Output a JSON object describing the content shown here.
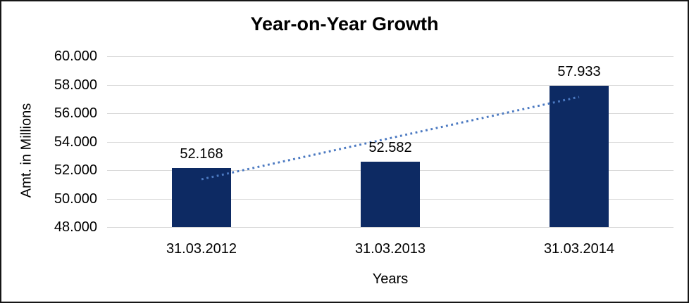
{
  "chart_data": {
    "type": "bar",
    "title": "Year-on-Year Growth",
    "xlabel": "Years",
    "ylabel": "Amt. in Millions",
    "categories": [
      "31.03.2012",
      "31.03.2013",
      "31.03.2014"
    ],
    "values": [
      52168,
      52582,
      57933
    ],
    "value_labels": [
      "52.168",
      "52.582",
      "57.933"
    ],
    "ylim": [
      48000,
      60000
    ],
    "ytick_step": 2000,
    "ytick_labels": [
      "60.000",
      "58.000",
      "56.000",
      "54.000",
      "52.000",
      "50.000",
      "48.000"
    ],
    "grid": true,
    "legend": "none",
    "bar_color": "#0D2A63",
    "trendline": {
      "type": "linear",
      "style": "dotted",
      "color": "#4B79C1",
      "start_value": 51360,
      "end_value": 57140
    },
    "colors": {
      "gridline": "#D9D9D9",
      "text": "#000000",
      "background": "#FFFFFF",
      "border": "#161616"
    }
  }
}
